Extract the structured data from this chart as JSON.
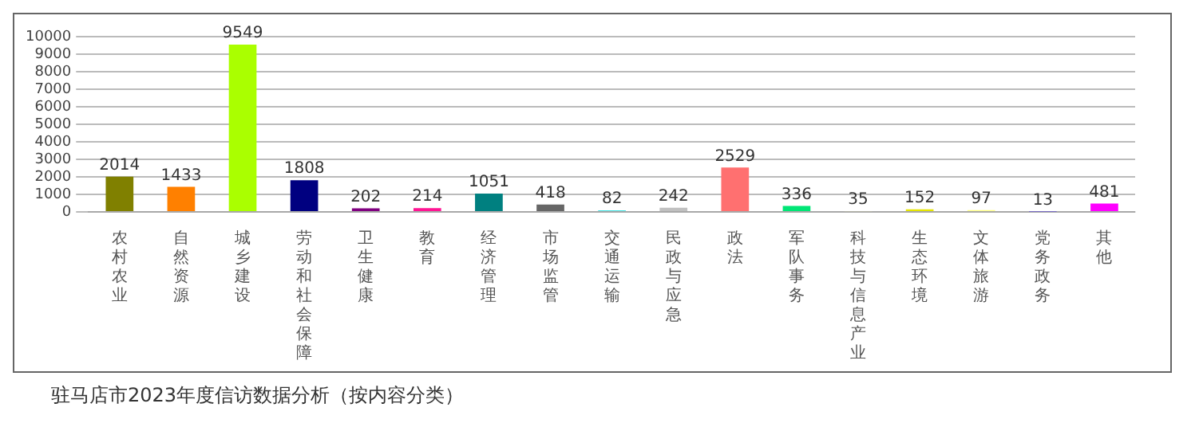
{
  "chart_data": {
    "type": "bar",
    "title": "驻马店市2023年度信访数据分析（按内容分类）",
    "categories": [
      "农村农业",
      "自然资源",
      "城乡建设",
      "劳动和社会保障",
      "卫生健康",
      "教育",
      "经济管理",
      "市场监管",
      "交通运输",
      "民政与应急",
      "政法",
      "军队事务",
      "科技与信息产业",
      "生态环境",
      "文体旅游",
      "党务政务",
      "其他"
    ],
    "values": [
      2014,
      1433,
      9549,
      1808,
      202,
      214,
      1051,
      418,
      82,
      242,
      2529,
      336,
      35,
      152,
      97,
      13,
      481
    ],
    "colors": [
      "#808000",
      "#ff8000",
      "#aaff00",
      "#000080",
      "#800080",
      "#ff1493",
      "#008080",
      "#666666",
      "#00d8d8",
      "#c0c0c0",
      "#ff7070",
      "#00e676",
      "#d0d0a0",
      "#e5e500",
      "#ffff80",
      "#6a5acd",
      "#ff00ff"
    ],
    "ylim": [
      0,
      10000
    ],
    "yticks": [
      0,
      1000,
      2000,
      3000,
      4000,
      5000,
      6000,
      7000,
      8000,
      9000,
      10000
    ],
    "grid": "y",
    "data_labels": true
  }
}
